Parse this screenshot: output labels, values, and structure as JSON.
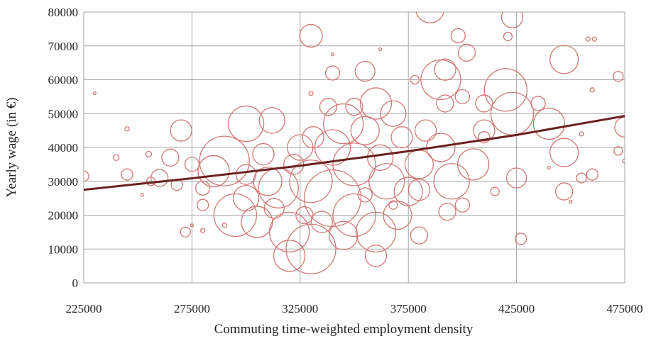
{
  "chart_data": {
    "type": "bubble",
    "x_label": "Commuting time-weighted employment density",
    "y_label": "Yearly wage (in €)",
    "xlim": [
      225000,
      475000
    ],
    "xticks": [
      225000,
      275000,
      325000,
      375000,
      425000,
      475000
    ],
    "ylim": [
      0,
      80000
    ],
    "yticks": [
      0,
      10000,
      20000,
      30000,
      40000,
      50000,
      60000,
      70000,
      80000
    ],
    "grid": true,
    "series": [
      {
        "color": "#d27876",
        "x": [
          330000,
          385000,
          423000,
          447000,
          420000,
          390000,
          423000,
          392000,
          355000,
          340000,
          345000,
          360000,
          300000,
          312000,
          290000,
          285000,
          320000,
          330000,
          320000,
          340000,
          330000,
          350000,
          360000,
          370000,
          350000,
          365000,
          375000,
          380000,
          395000,
          405000,
          410000,
          440000,
          447000,
          475000,
          270000,
          265000,
          260000,
          245000,
          225000,
          308000,
          315000,
          325000,
          300000,
          295000,
          305000,
          310000,
          340000,
          355000,
          368000,
          383000,
          392000,
          400000,
          410000,
          398000,
          402000,
          390000,
          380000,
          393000,
          400000,
          380000,
          360000,
          345000,
          335000,
          327000,
          372000,
          362000,
          338000,
          350000,
          331000,
          322000,
          313000,
          300000,
          280000,
          275000,
          268000,
          272000,
          256000,
          280000,
          425000,
          427000,
          447000,
          460000,
          455000,
          472000,
          472000,
          415000,
          410000,
          435000,
          230000,
          245000,
          240000,
          255000,
          252000,
          275000,
          280000,
          290000,
          440000,
          450000,
          460000,
          458000,
          461000,
          455000,
          475000,
          362000,
          340000,
          330000,
          421000,
          378000,
          368000,
          355000
        ],
        "values": [
          73000,
          81000,
          78500,
          66000,
          57000,
          60000,
          50000,
          63000,
          62500,
          62000,
          47000,
          53000,
          47000,
          48000,
          36000,
          33000,
          15000,
          10000,
          8000,
          25000,
          30000,
          20000,
          15000,
          20000,
          35000,
          30000,
          27000,
          35000,
          30000,
          35000,
          45000,
          47000,
          38500,
          46000,
          45000,
          37000,
          31000,
          32000,
          31500,
          38000,
          28000,
          40000,
          25000,
          20000,
          18000,
          30000,
          40000,
          45000,
          50000,
          45000,
          53000,
          55000,
          53000,
          73000,
          68000,
          40000,
          27500,
          21000,
          23000,
          14000,
          8000,
          14000,
          18000,
          20000,
          43000,
          37000,
          52000,
          52000,
          43000,
          35000,
          22000,
          32000,
          28000,
          35000,
          29000,
          15000,
          30000,
          23000,
          31000,
          13000,
          27000,
          32000,
          31000,
          39000,
          61000,
          27000,
          43000,
          53000,
          56000,
          45500,
          37000,
          38000,
          26000,
          17000,
          15500,
          17000,
          34000,
          24000,
          57000,
          72000,
          72000,
          44000,
          36000,
          69000,
          67500,
          56000,
          72800,
          60000,
          23000,
          26000
        ],
        "sizes": [
          256,
          400,
          225,
          400,
          900,
          784,
          900,
          225,
          196,
          100,
          784,
          484,
          625,
          324,
          1225,
          484,
          784,
          1225,
          484,
          1600,
          900,
          900,
          784,
          400,
          900,
          625,
          400,
          400,
          625,
          484,
          225,
          484,
          400,
          196,
          225,
          144,
          144,
          64,
          49,
          225,
          784,
          324,
          324,
          900,
          484,
          400,
          625,
          400,
          324,
          225,
          144,
          100,
          144,
          100,
          144,
          400,
          225,
          144,
          100,
          144,
          225,
          400,
          225,
          144,
          225,
          324,
          144,
          144,
          225,
          196,
          196,
          196,
          100,
          100,
          64,
          49,
          36,
          64,
          196,
          64,
          144,
          64,
          49,
          36,
          49,
          36,
          64,
          100,
          4,
          9,
          16,
          16,
          4,
          4,
          9,
          9,
          4,
          4,
          9,
          9,
          9,
          9,
          9,
          4,
          4,
          9,
          36,
          36,
          36,
          100
        ]
      }
    ],
    "trendline": {
      "color": "#6b2020",
      "x": [
        225000,
        275000,
        325000,
        375000,
        425000,
        475000
      ],
      "values": [
        27500,
        30900,
        34600,
        38900,
        43700,
        49300
      ]
    }
  }
}
